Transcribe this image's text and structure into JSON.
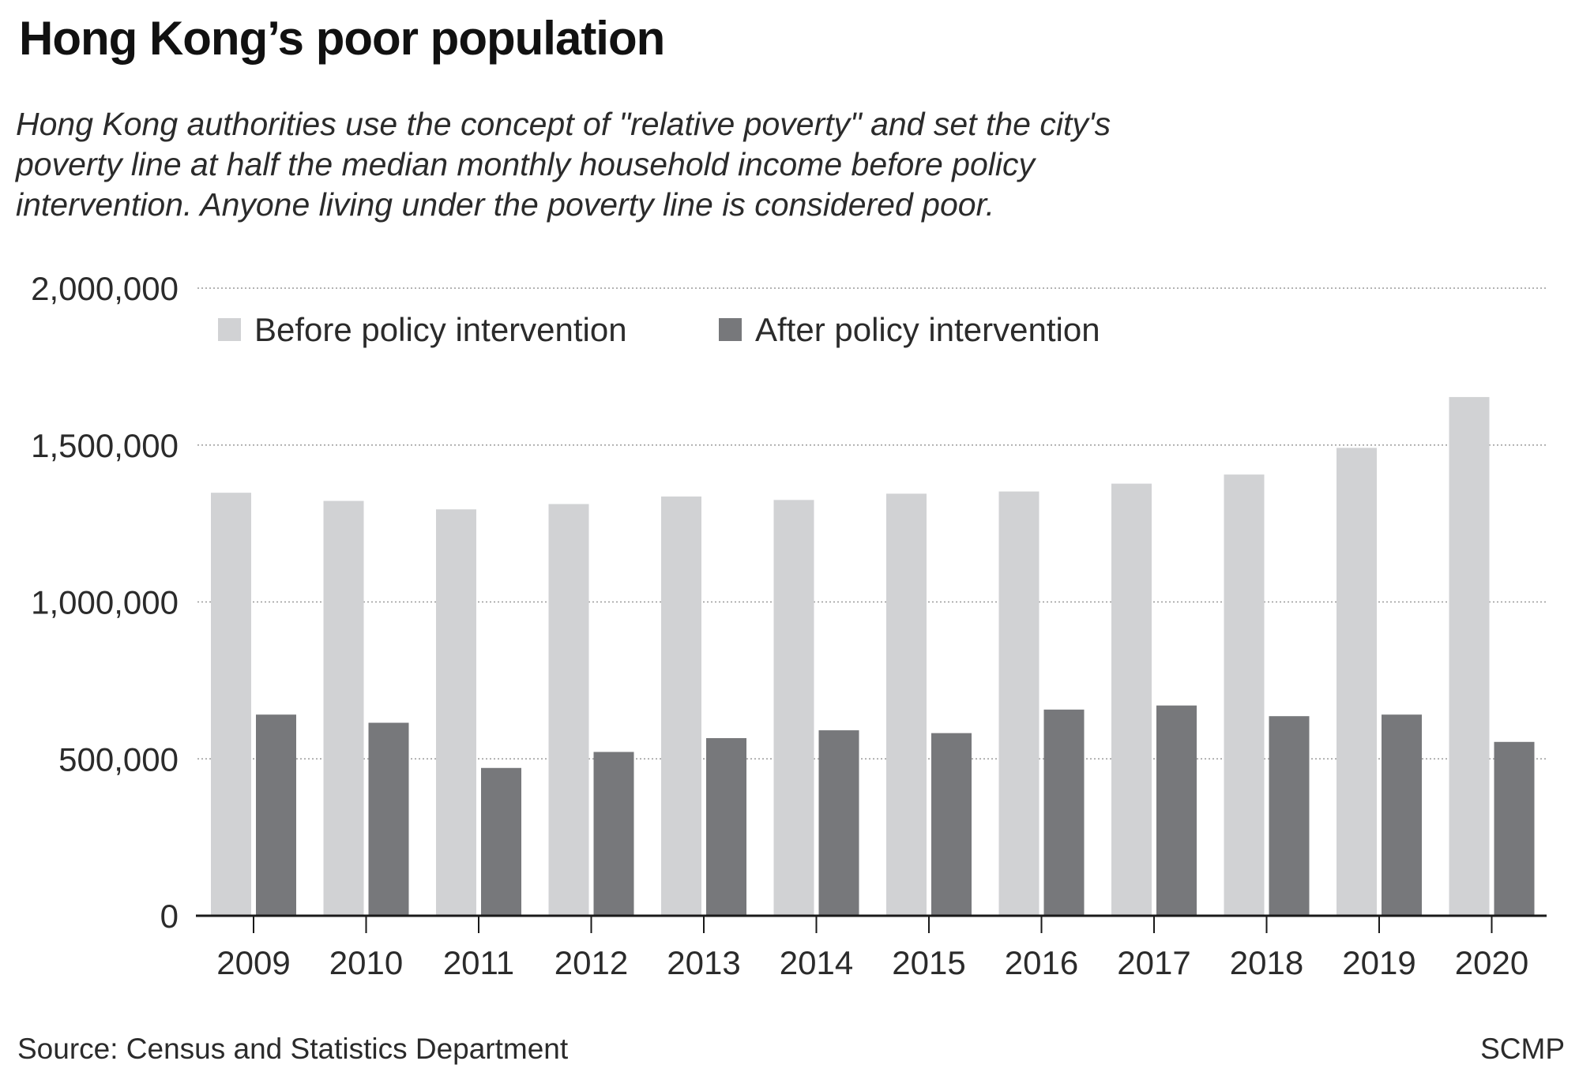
{
  "title": "Hong Kong’s poor population",
  "subtitle": "Hong Kong authorities use the concept of \"relative poverty\" and set the city's poverty line at half the median monthly household income before policy intervention. Anyone living under the poverty line is considered poor.",
  "source": "Source: Census and Statistics Department",
  "credit": "SCMP",
  "colors": {
    "before": "#d1d2d4",
    "after": "#77787b",
    "gridline": "#9a9a9a",
    "axis": "#1a1a1a"
  },
  "chart_data": {
    "type": "bar",
    "categories": [
      "2009",
      "2010",
      "2011",
      "2012",
      "2013",
      "2014",
      "2015",
      "2016",
      "2017",
      "2018",
      "2019",
      "2020"
    ],
    "series": [
      {
        "name": "Before policy intervention",
        "values": [
          1348000,
          1322000,
          1295000,
          1312000,
          1336000,
          1325000,
          1345000,
          1352000,
          1377000,
          1406000,
          1491000,
          1653000
        ]
      },
      {
        "name": "After policy intervention",
        "values": [
          641000,
          615000,
          471000,
          522000,
          566000,
          591000,
          582000,
          657000,
          670000,
          636000,
          641000,
          554000
        ]
      }
    ],
    "yticks": [
      0,
      500000,
      1000000,
      1500000,
      2000000
    ],
    "ytick_labels": [
      "0",
      "500,000",
      "1,000,000",
      "1,500,000",
      "2,000,000"
    ],
    "ylim": [
      0,
      2000000
    ],
    "grid": true,
    "legend": "top-left"
  }
}
